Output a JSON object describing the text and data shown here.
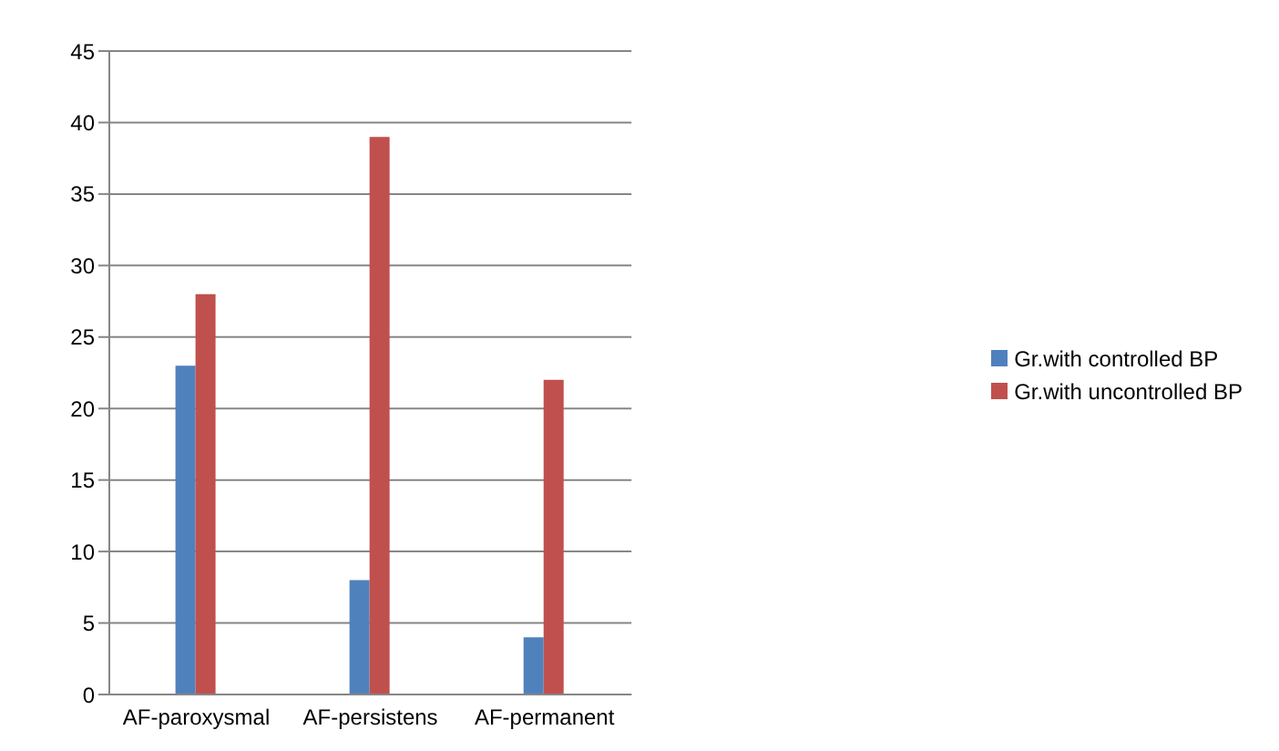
{
  "chart_data": {
    "type": "bar",
    "categories": [
      "AF-paroxysmal",
      "AF-persistens",
      "AF-permanent"
    ],
    "series": [
      {
        "name": "Gr.with controlled BP",
        "color": "#4f81bd",
        "values": [
          23,
          8,
          4
        ]
      },
      {
        "name": "Gr.with uncontrolled BP",
        "color": "#c0504d",
        "values": [
          28,
          39,
          22
        ]
      }
    ],
    "ylim": [
      0,
      45
    ],
    "yticks": [
      0,
      5,
      10,
      15,
      20,
      25,
      30,
      35,
      40,
      45
    ],
    "grid": "y",
    "legend": "right"
  }
}
